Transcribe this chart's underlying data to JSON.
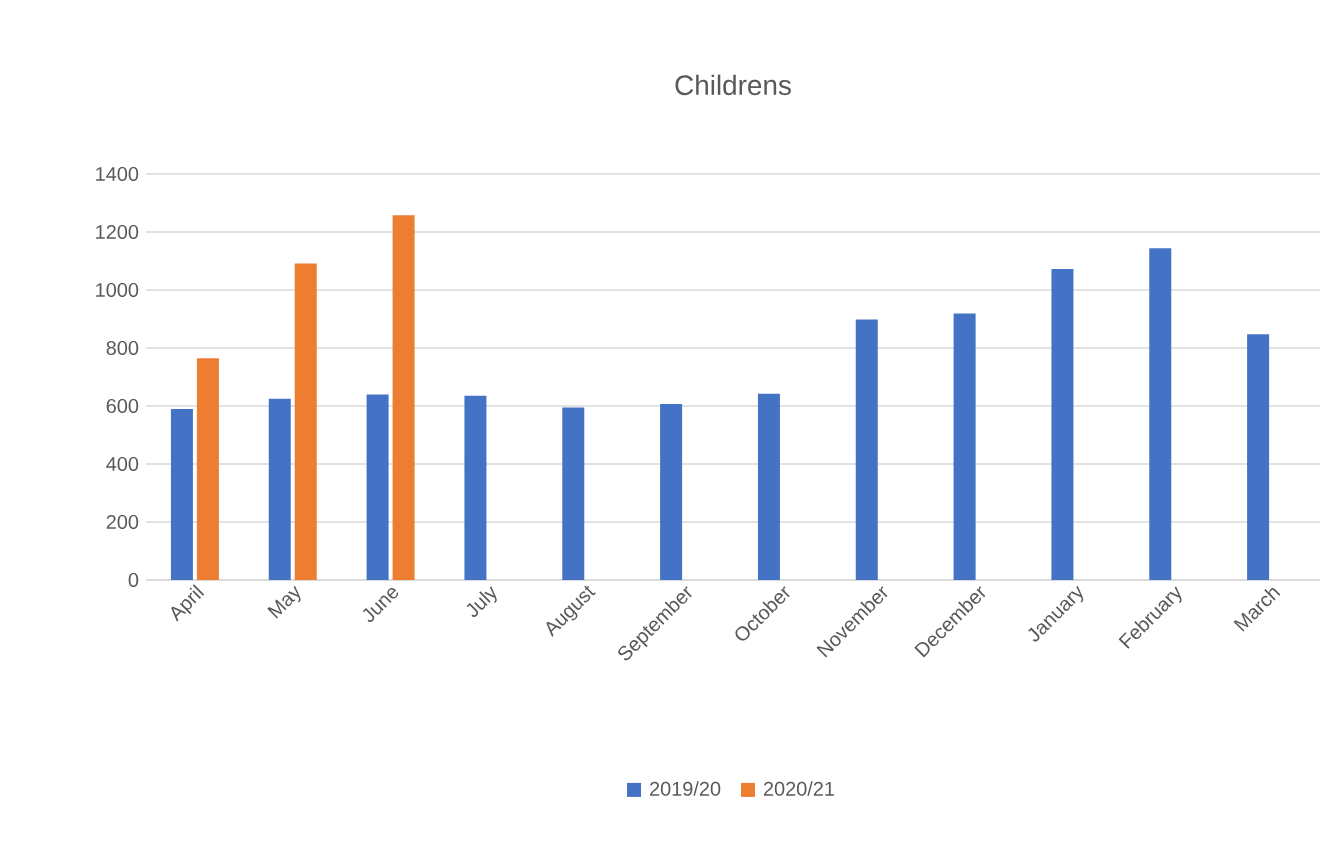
{
  "chart_data": {
    "type": "bar",
    "title": "Childrens",
    "categories": [
      "April",
      "May",
      "June",
      "July",
      "August",
      "September",
      "October",
      "November",
      "December",
      "January",
      "February",
      "March"
    ],
    "series": [
      {
        "name": "2019/20",
        "color": "#4472c4",
        "values": [
          590,
          625,
          640,
          635,
          595,
          607,
          642,
          898,
          919,
          1072,
          1144,
          847
        ]
      },
      {
        "name": "2020/21",
        "color": "#ed7d31",
        "values": [
          765,
          1091,
          1258,
          null,
          null,
          null,
          null,
          null,
          null,
          null,
          null,
          null
        ]
      }
    ],
    "ylim": [
      0,
      1400
    ],
    "yticks": [
      0,
      200,
      400,
      600,
      800,
      1000,
      1200,
      1400
    ],
    "grid": "y",
    "legend": "bottom"
  }
}
